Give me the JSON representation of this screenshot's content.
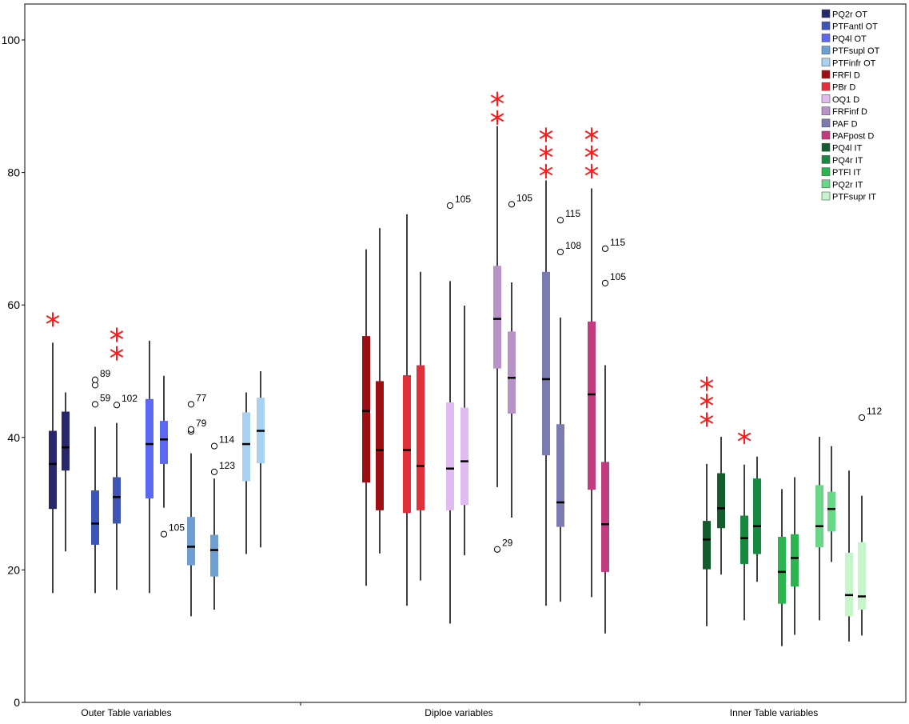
{
  "chart_data": {
    "type": "boxplot",
    "ylim": [
      0,
      100
    ],
    "y_ticks": [
      0,
      20,
      40,
      60,
      80,
      100
    ],
    "grid": false,
    "legend_position": "top-right",
    "groups": [
      {
        "label": "Outer Table variables",
        "series": [
          "PQ2r OT",
          "PTFantl OT",
          "PQ4l OT",
          "PTFsupl OT",
          "PTFinfr OT"
        ]
      },
      {
        "label": "Diploe variables",
        "series": [
          "FRFl D",
          "PBr D",
          "OQ1 D",
          "FRFinf D",
          "PAF D",
          "PAFpost D"
        ]
      },
      {
        "label": "Inner Table variables",
        "series": [
          "PQ4l IT",
          "PQ4r IT",
          "PTFl IT",
          "PQ2r IT",
          "PTFsupr IT"
        ]
      }
    ],
    "series": [
      {
        "name": "PQ2r OT",
        "color": "#26286b"
      },
      {
        "name": "PTFantl OT",
        "color": "#3f55b5"
      },
      {
        "name": "PQ4l OT",
        "color": "#5b68f4"
      },
      {
        "name": "PTFsupl OT",
        "color": "#6f9fd2"
      },
      {
        "name": "PTFinfr OT",
        "color": "#a9d1f2"
      },
      {
        "name": "FRFl D",
        "color": "#9e0f14"
      },
      {
        "name": "PBr D",
        "color": "#e2303a"
      },
      {
        "name": "OQ1 D",
        "color": "#e0baf0"
      },
      {
        "name": "FRFinf D",
        "color": "#b793c8"
      },
      {
        "name": "PAF D",
        "color": "#7a7bb0"
      },
      {
        "name": "PAFpost D",
        "color": "#c23a80"
      },
      {
        "name": "PQ4l IT",
        "color": "#125c2e"
      },
      {
        "name": "PQ4r IT",
        "color": "#158a3f"
      },
      {
        "name": "PTFl IT",
        "color": "#2db34f"
      },
      {
        "name": "PQ2r IT",
        "color": "#6ad688"
      },
      {
        "name": "PTFsupr IT",
        "color": "#c6f5cc"
      }
    ],
    "boxes": [
      {
        "group": 0,
        "color": "#26286b",
        "min": 16.5,
        "q1": 29.2,
        "median": 36.0,
        "q3": 41.0,
        "max": 54.3,
        "outliers": [],
        "extremes": [
          57.8
        ]
      },
      {
        "group": 0,
        "color": "#26286b",
        "min": 22.8,
        "q1": 35.0,
        "median": 38.5,
        "q3": 43.9,
        "max": 46.8,
        "outliers": [],
        "extremes": []
      },
      {
        "group": 0,
        "color": "#3f55b5",
        "min": 16.5,
        "q1": 23.8,
        "median": 27.0,
        "q3": 32.0,
        "max": 41.6,
        "outliers": [
          {
            "v": 45.0,
            "label": "59"
          },
          {
            "v": 47.9,
            "label": ""
          },
          {
            "v": 48.7,
            "label": "89"
          }
        ],
        "extremes": []
      },
      {
        "group": 0,
        "color": "#3f55b5",
        "min": 17.0,
        "q1": 27.0,
        "median": 31.0,
        "q3": 34.0,
        "max": 42.2,
        "outliers": [
          {
            "v": 44.9,
            "label": "102"
          }
        ],
        "extremes": [
          52.7,
          55.5
        ]
      },
      {
        "group": 0,
        "color": "#5b68f4",
        "min": 16.5,
        "q1": 30.8,
        "median": 39.0,
        "q3": 45.8,
        "max": 54.6,
        "outliers": [],
        "extremes": []
      },
      {
        "group": 0,
        "color": "#5b68f4",
        "min": 29.4,
        "q1": 36.0,
        "median": 39.7,
        "q3": 42.5,
        "max": 49.3,
        "outliers": [
          {
            "v": 25.4,
            "label": "105"
          }
        ],
        "extremes": []
      },
      {
        "group": 0,
        "color": "#6f9fd2",
        "min": 13.0,
        "q1": 20.7,
        "median": 23.5,
        "q3": 28.0,
        "max": 37.6,
        "outliers": [
          {
            "v": 40.9,
            "label": ""
          },
          {
            "v": 41.2,
            "label": "79"
          },
          {
            "v": 45.0,
            "label": "77"
          }
        ],
        "extremes": []
      },
      {
        "group": 0,
        "color": "#6f9fd2",
        "min": 14.0,
        "q1": 19.0,
        "median": 23.0,
        "q3": 25.3,
        "max": 33.8,
        "outliers": [
          {
            "v": 34.8,
            "label": "123"
          },
          {
            "v": 38.7,
            "label": "114"
          }
        ],
        "extremes": []
      },
      {
        "group": 0,
        "color": "#a9d1f2",
        "min": 22.4,
        "q1": 33.4,
        "median": 39.0,
        "q3": 43.8,
        "max": 46.8,
        "outliers": [],
        "extremes": []
      },
      {
        "group": 0,
        "color": "#a9d1f2",
        "min": 23.4,
        "q1": 36.1,
        "median": 41.0,
        "q3": 46.0,
        "max": 50.0,
        "outliers": [],
        "extremes": []
      },
      {
        "group": 1,
        "color": "#9e0f14",
        "min": 17.6,
        "q1": 33.2,
        "median": 44.0,
        "q3": 55.3,
        "max": 68.4,
        "outliers": [],
        "extremes": []
      },
      {
        "group": 1,
        "color": "#9e0f14",
        "min": 22.5,
        "q1": 29.0,
        "median": 38.1,
        "q3": 48.5,
        "max": 71.6,
        "outliers": [],
        "extremes": []
      },
      {
        "group": 1,
        "color": "#e2303a",
        "min": 14.6,
        "q1": 28.6,
        "median": 38.1,
        "q3": 49.4,
        "max": 73.7,
        "outliers": [],
        "extremes": []
      },
      {
        "group": 1,
        "color": "#e2303a",
        "min": 18.4,
        "q1": 29.0,
        "median": 35.7,
        "q3": 50.9,
        "max": 65.0,
        "outliers": [],
        "extremes": []
      },
      {
        "group": 1,
        "color": "#e0baf0",
        "min": 11.9,
        "q1": 29.0,
        "median": 35.3,
        "q3": 45.3,
        "max": 63.6,
        "outliers": [
          {
            "v": 75.0,
            "label": "105"
          }
        ],
        "extremes": []
      },
      {
        "group": 1,
        "color": "#e0baf0",
        "min": 22.2,
        "q1": 29.8,
        "median": 36.4,
        "q3": 44.5,
        "max": 59.9,
        "outliers": [],
        "extremes": []
      },
      {
        "group": 1,
        "color": "#b793c8",
        "min": 32.5,
        "q1": 50.4,
        "median": 57.9,
        "q3": 65.9,
        "max": 87.0,
        "outliers": [
          {
            "v": 23.1,
            "label": "29"
          }
        ],
        "extremes": [
          88.3,
          91.1
        ]
      },
      {
        "group": 1,
        "color": "#b793c8",
        "min": 27.9,
        "q1": 43.6,
        "median": 49.0,
        "q3": 56.0,
        "max": 63.4,
        "outliers": [
          {
            "v": 75.2,
            "label": "105"
          }
        ],
        "extremes": []
      },
      {
        "group": 1,
        "color": "#7a7bb0",
        "min": 14.6,
        "q1": 37.3,
        "median": 48.8,
        "q3": 65.0,
        "max": 78.8,
        "outliers": [],
        "extremes": [
          80.2,
          83.0,
          85.7
        ]
      },
      {
        "group": 1,
        "color": "#7a7bb0",
        "min": 15.2,
        "q1": 26.5,
        "median": 30.2,
        "q3": 42.0,
        "max": 58.1,
        "outliers": [
          {
            "v": 68.0,
            "label": "108"
          },
          {
            "v": 72.8,
            "label": "115"
          }
        ],
        "extremes": []
      },
      {
        "group": 1,
        "color": "#c23a80",
        "min": 15.9,
        "q1": 32.1,
        "median": 46.5,
        "q3": 57.5,
        "max": 77.6,
        "outliers": [],
        "extremes": [
          80.2,
          83.0,
          85.7
        ]
      },
      {
        "group": 1,
        "color": "#c23a80",
        "min": 10.4,
        "q1": 19.7,
        "median": 26.9,
        "q3": 36.3,
        "max": 50.9,
        "outliers": [
          {
            "v": 63.3,
            "label": "105"
          },
          {
            "v": 68.5,
            "label": "115"
          }
        ],
        "extremes": []
      },
      {
        "group": 2,
        "color": "#125c2e",
        "min": 11.5,
        "q1": 20.1,
        "median": 24.6,
        "q3": 27.4,
        "max": 36.0,
        "outliers": [],
        "extremes": [
          42.7,
          45.5,
          48.1
        ]
      },
      {
        "group": 2,
        "color": "#125c2e",
        "min": 19.3,
        "q1": 26.3,
        "median": 29.3,
        "q3": 34.6,
        "max": 40.1,
        "outliers": [],
        "extremes": []
      },
      {
        "group": 2,
        "color": "#158a3f",
        "min": 12.4,
        "q1": 20.9,
        "median": 24.8,
        "q3": 28.2,
        "max": 35.9,
        "outliers": [],
        "extremes": [
          40.1
        ]
      },
      {
        "group": 2,
        "color": "#158a3f",
        "min": 18.2,
        "q1": 22.4,
        "median": 26.6,
        "q3": 33.8,
        "max": 37.1,
        "outliers": [],
        "extremes": []
      },
      {
        "group": 2,
        "color": "#2db34f",
        "min": 8.5,
        "q1": 14.9,
        "median": 19.7,
        "q3": 25.0,
        "max": 32.2,
        "outliers": [],
        "extremes": []
      },
      {
        "group": 2,
        "color": "#2db34f",
        "min": 10.2,
        "q1": 17.5,
        "median": 21.8,
        "q3": 25.4,
        "max": 34.0,
        "outliers": [],
        "extremes": []
      },
      {
        "group": 2,
        "color": "#6ad688",
        "min": 12.4,
        "q1": 23.4,
        "median": 26.6,
        "q3": 32.8,
        "max": 40.1,
        "outliers": [],
        "extremes": []
      },
      {
        "group": 2,
        "color": "#6ad688",
        "min": 21.2,
        "q1": 25.8,
        "median": 29.2,
        "q3": 31.8,
        "max": 38.7,
        "outliers": [],
        "extremes": []
      },
      {
        "group": 2,
        "color": "#c6f5cc",
        "min": 9.2,
        "q1": 13.0,
        "median": 16.2,
        "q3": 22.6,
        "max": 35.0,
        "outliers": [],
        "extremes": []
      },
      {
        "group": 2,
        "color": "#c6f5cc",
        "min": 10.1,
        "q1": 14.0,
        "median": 16.0,
        "q3": 24.2,
        "max": 31.2,
        "outliers": [
          {
            "v": 43.0,
            "label": "112"
          }
        ],
        "extremes": []
      }
    ]
  }
}
